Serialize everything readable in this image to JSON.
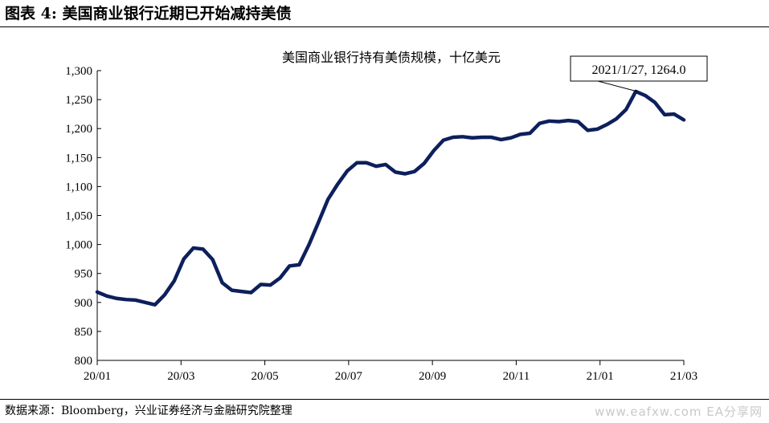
{
  "figure_title": "图表 4:  美国商业银行近期已开始减持美债",
  "source_note": "数据来源：Bloomberg，兴业证券经济与金融研究院整理",
  "watermark": "www.eafxw.com  EA分享网",
  "chart_data": {
    "type": "line",
    "title": "美国商业银行持有美债规模，十亿美元",
    "xlabel": "",
    "ylabel": "",
    "ylim": [
      800,
      1300
    ],
    "yticks": [
      800,
      850,
      900,
      950,
      1000,
      1050,
      1100,
      1150,
      1200,
      1250,
      1300
    ],
    "ytick_labels": [
      "800",
      "850",
      "900",
      "950",
      "1,000",
      "1,050",
      "1,100",
      "1,150",
      "1,200",
      "1,250",
      "1,300"
    ],
    "xtick_labels": [
      "20/01",
      "20/03",
      "20/05",
      "20/07",
      "20/09",
      "20/11",
      "21/01",
      "21/03"
    ],
    "grid": false,
    "line_color": "#0d1f5c",
    "annotation": {
      "text": "2021/1/27, 1264.0",
      "x_index": 56,
      "y": 1264.0
    },
    "series": [
      {
        "name": "",
        "values": [
          918,
          911,
          907,
          905,
          904,
          900,
          896,
          913,
          937,
          975,
          994,
          992,
          974,
          934,
          921,
          919,
          917,
          931,
          930,
          942,
          963,
          965,
          999,
          1038,
          1078,
          1104,
          1127,
          1141,
          1141,
          1135,
          1138,
          1125,
          1122,
          1126,
          1140,
          1162,
          1180,
          1185,
          1186,
          1184,
          1185,
          1185,
          1181,
          1184,
          1190,
          1192,
          1209,
          1213,
          1212,
          1214,
          1212,
          1197,
          1199,
          1207,
          1217,
          1233,
          1264,
          1257,
          1245,
          1224,
          1225,
          1215
        ]
      }
    ]
  }
}
